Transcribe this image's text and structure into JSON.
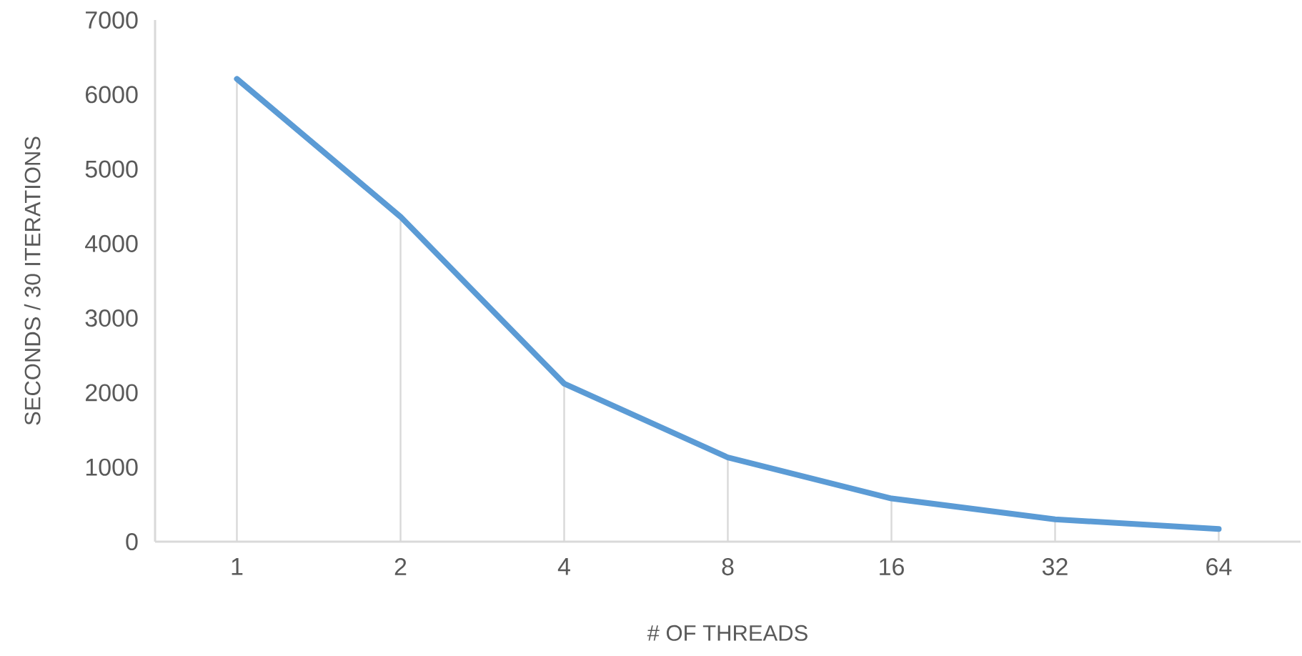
{
  "chart_data": {
    "type": "line",
    "xlabel": "# OF THREADS",
    "ylabel": "SECONDS / 30 ITERATIONS",
    "categories": [
      "1",
      "2",
      "4",
      "8",
      "16",
      "32",
      "64"
    ],
    "series": [
      {
        "type": "bar",
        "color": "#d9d9d9",
        "values": [
          6210,
          4360,
          2120,
          1130,
          580,
          300,
          170
        ]
      },
      {
        "color": "#5b9bd5",
        "values": [
          6210,
          4360,
          2120,
          1130,
          580,
          300,
          170
        ]
      }
    ],
    "ylim": [
      0,
      7000
    ],
    "yticks": [
      0,
      1000,
      2000,
      3000,
      4000,
      5000,
      6000,
      7000
    ],
    "grid": false,
    "legend": false,
    "marker": "none",
    "line_style": "solid"
  }
}
